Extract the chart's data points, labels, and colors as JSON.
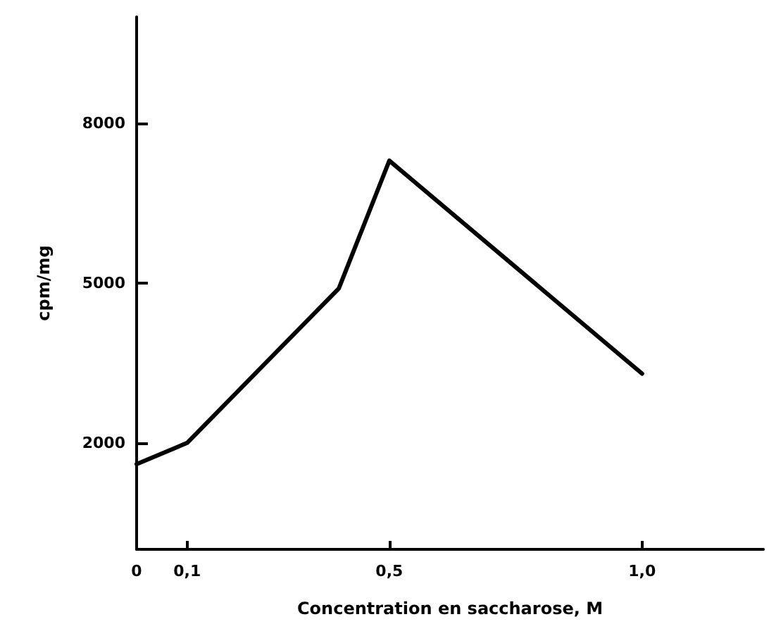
{
  "chart_data": {
    "type": "line",
    "xlabel": "Concentration en saccharose, M",
    "ylabel": "cpm/mg",
    "x": [
      0,
      0.1,
      0.4,
      0.5,
      1.0
    ],
    "values": [
      1600,
      2000,
      4900,
      7300,
      3300
    ],
    "color": "#000000",
    "xlim": [
      0,
      1.24
    ],
    "ylim": [
      0,
      10000
    ],
    "xticks": [
      {
        "value": 0,
        "label": "0"
      },
      {
        "value": 0.1,
        "label": "0,1"
      },
      {
        "value": 0.5,
        "label": "0,5"
      },
      {
        "value": 1.0,
        "label": "1,0"
      }
    ],
    "yticks": [
      2000,
      5000,
      8000
    ],
    "grid": false,
    "marker": "none",
    "line_style": "solid"
  }
}
